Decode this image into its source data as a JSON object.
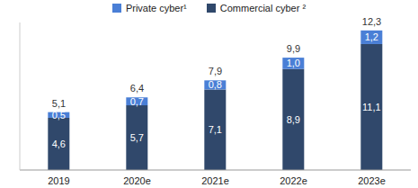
{
  "chart_data": {
    "type": "bar",
    "stacked": true,
    "data_labels": true,
    "tick_labels": "x",
    "legend": "top",
    "categories": [
      "2019",
      "2020e",
      "2021e",
      "2022e",
      "2023e"
    ],
    "series": [
      {
        "name": "Commercial cyber ²",
        "color": "#30486b",
        "values": [
          4.6,
          5.7,
          7.1,
          8.9,
          11.1
        ],
        "value_labels": [
          "4,6",
          "5,7",
          "7,1",
          "8,9",
          "11,1"
        ]
      },
      {
        "name": "Private cyber¹",
        "color": "#4a7fd6",
        "values": [
          0.5,
          0.7,
          0.8,
          1.0,
          1.2
        ],
        "value_labels": [
          "0,5",
          "0,7",
          "0,8",
          "1,0",
          "1,2"
        ]
      }
    ],
    "totals": {
      "values": [
        5.1,
        6.4,
        7.9,
        9.9,
        12.3
      ],
      "value_labels": [
        "5,1",
        "6,4",
        "7,9",
        "9,9",
        "12,3"
      ]
    },
    "ylim": [
      0,
      13
    ],
    "yticks": [
      0
    ]
  }
}
